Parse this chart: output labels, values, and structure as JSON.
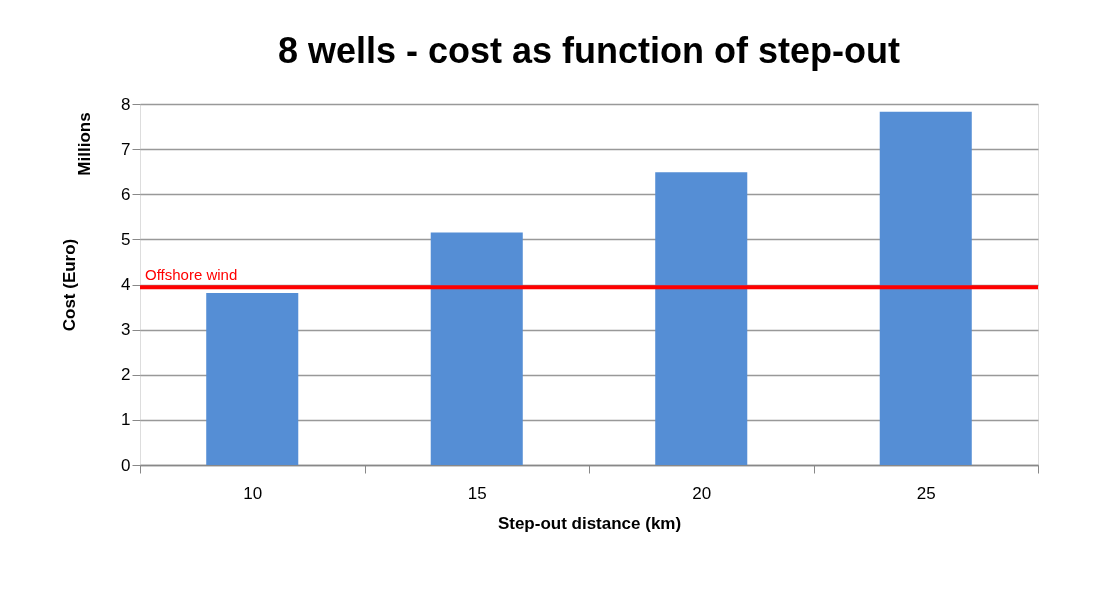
{
  "chart_data": {
    "type": "bar",
    "title": "8 wells - cost as function of step-out",
    "xlabel": "Step-out distance (km)",
    "ylabel": "Cost (Euro)",
    "annotations": [
      "Millions"
    ],
    "categories": [
      "10",
      "15",
      "20",
      "25"
    ],
    "values": [
      3.81,
      5.15,
      6.49,
      7.83
    ],
    "color": "#558ed5",
    "ylim": [
      0,
      8
    ],
    "yticks": [
      0,
      1,
      2,
      3,
      4,
      5,
      6,
      7,
      8
    ],
    "grid": "y",
    "ref_lines": [
      {
        "axis": "y",
        "value": 3.94,
        "label": "Offshore wind",
        "color": "#ff0000"
      }
    ]
  }
}
